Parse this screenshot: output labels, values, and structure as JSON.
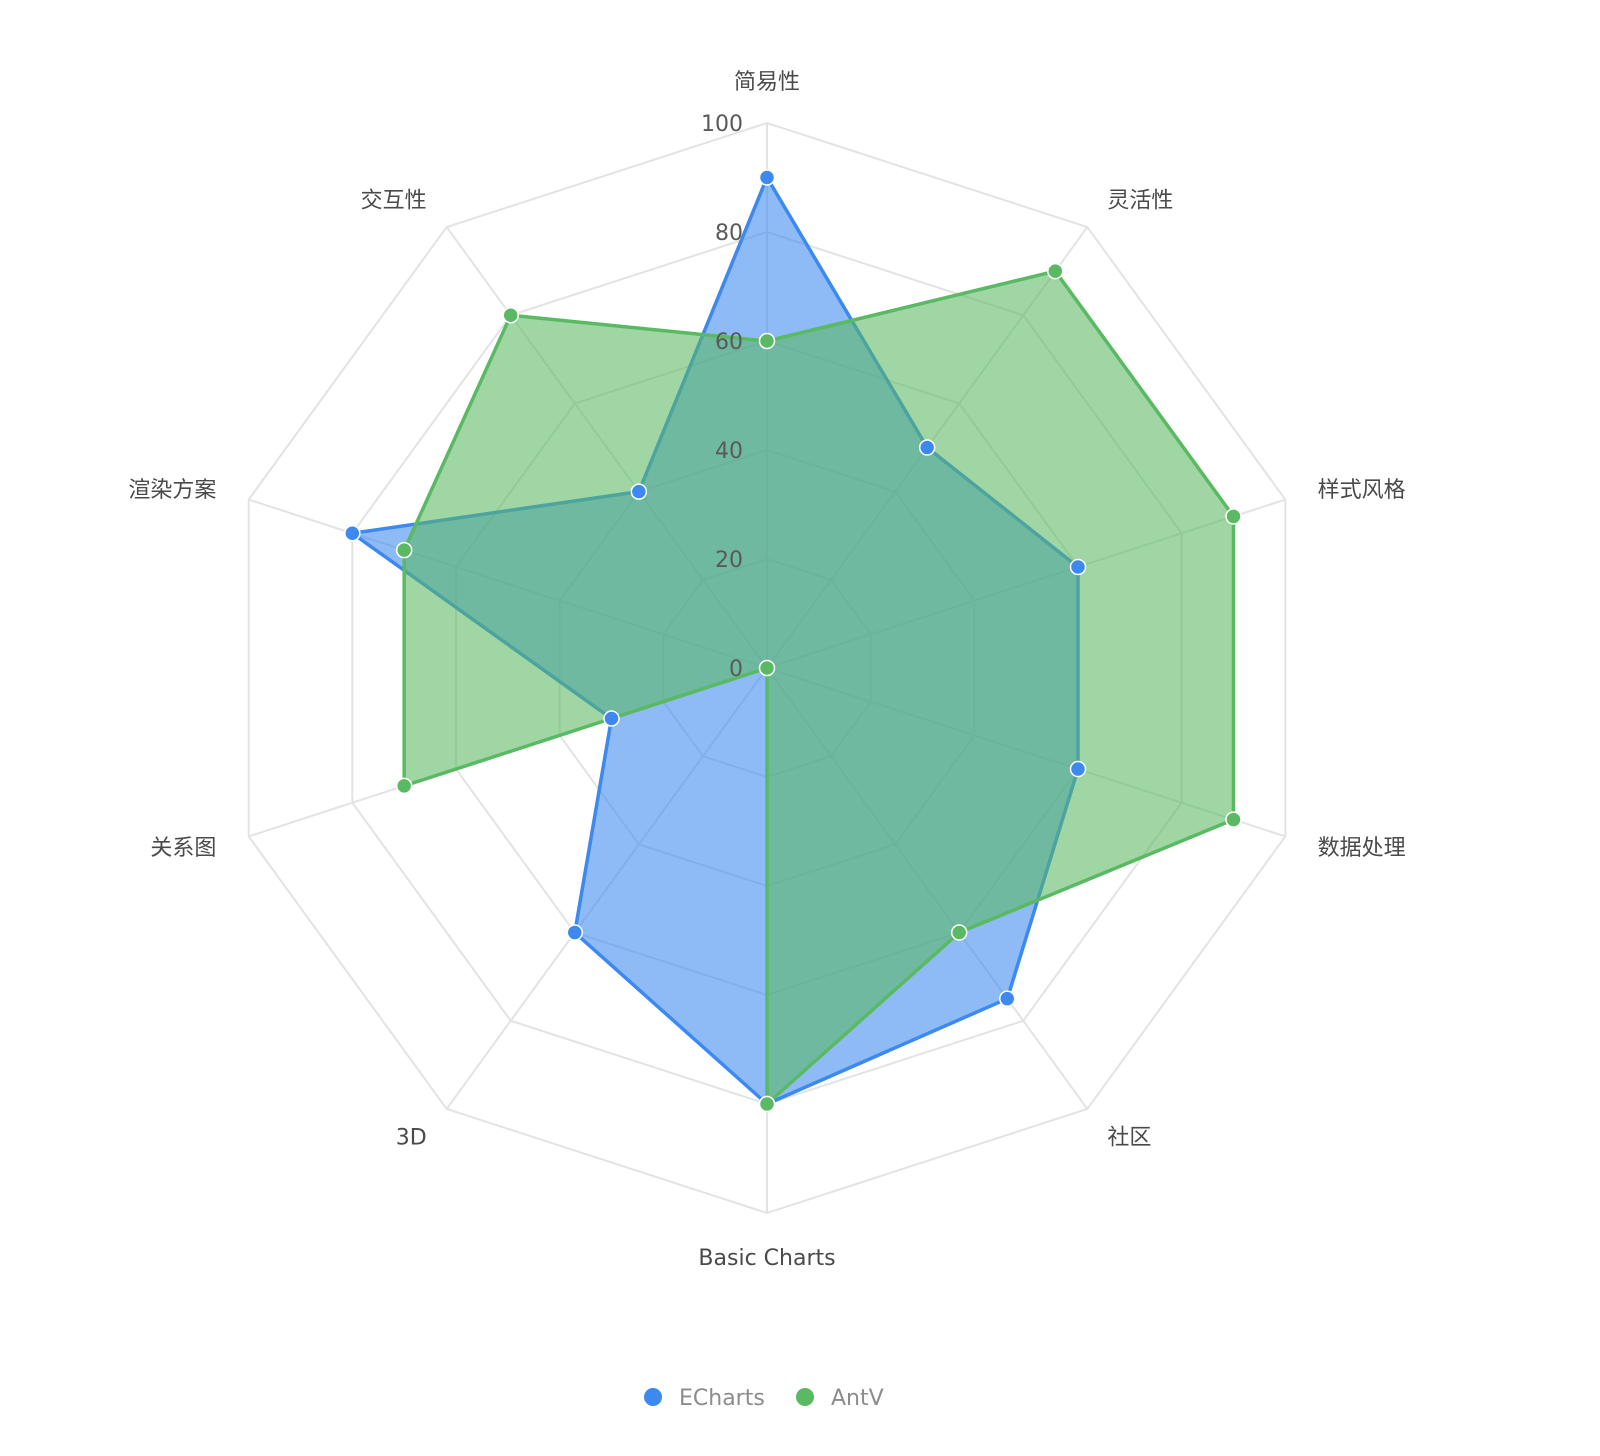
{
  "chart_data": {
    "type": "radar",
    "axes": [
      "简易性",
      "灵活性",
      "样式风格",
      "数据处理",
      "社区",
      "Basic Charts",
      "3D",
      "关系图",
      "渲染方案",
      "交互性"
    ],
    "range": [
      0,
      100
    ],
    "ticks": [
      "0",
      "20",
      "40",
      "60",
      "80",
      "100"
    ],
    "grid": true,
    "legend_position": "bottom-center",
    "series": [
      {
        "name": "ECharts",
        "color": "#3d89f0",
        "values": [
          90,
          50,
          60,
          60,
          75,
          80,
          60,
          30,
          80,
          40
        ]
      },
      {
        "name": "AntV",
        "color": "#5ab963",
        "values": [
          60,
          90,
          90,
          90,
          60,
          80,
          0,
          70,
          70,
          80
        ]
      }
    ]
  }
}
